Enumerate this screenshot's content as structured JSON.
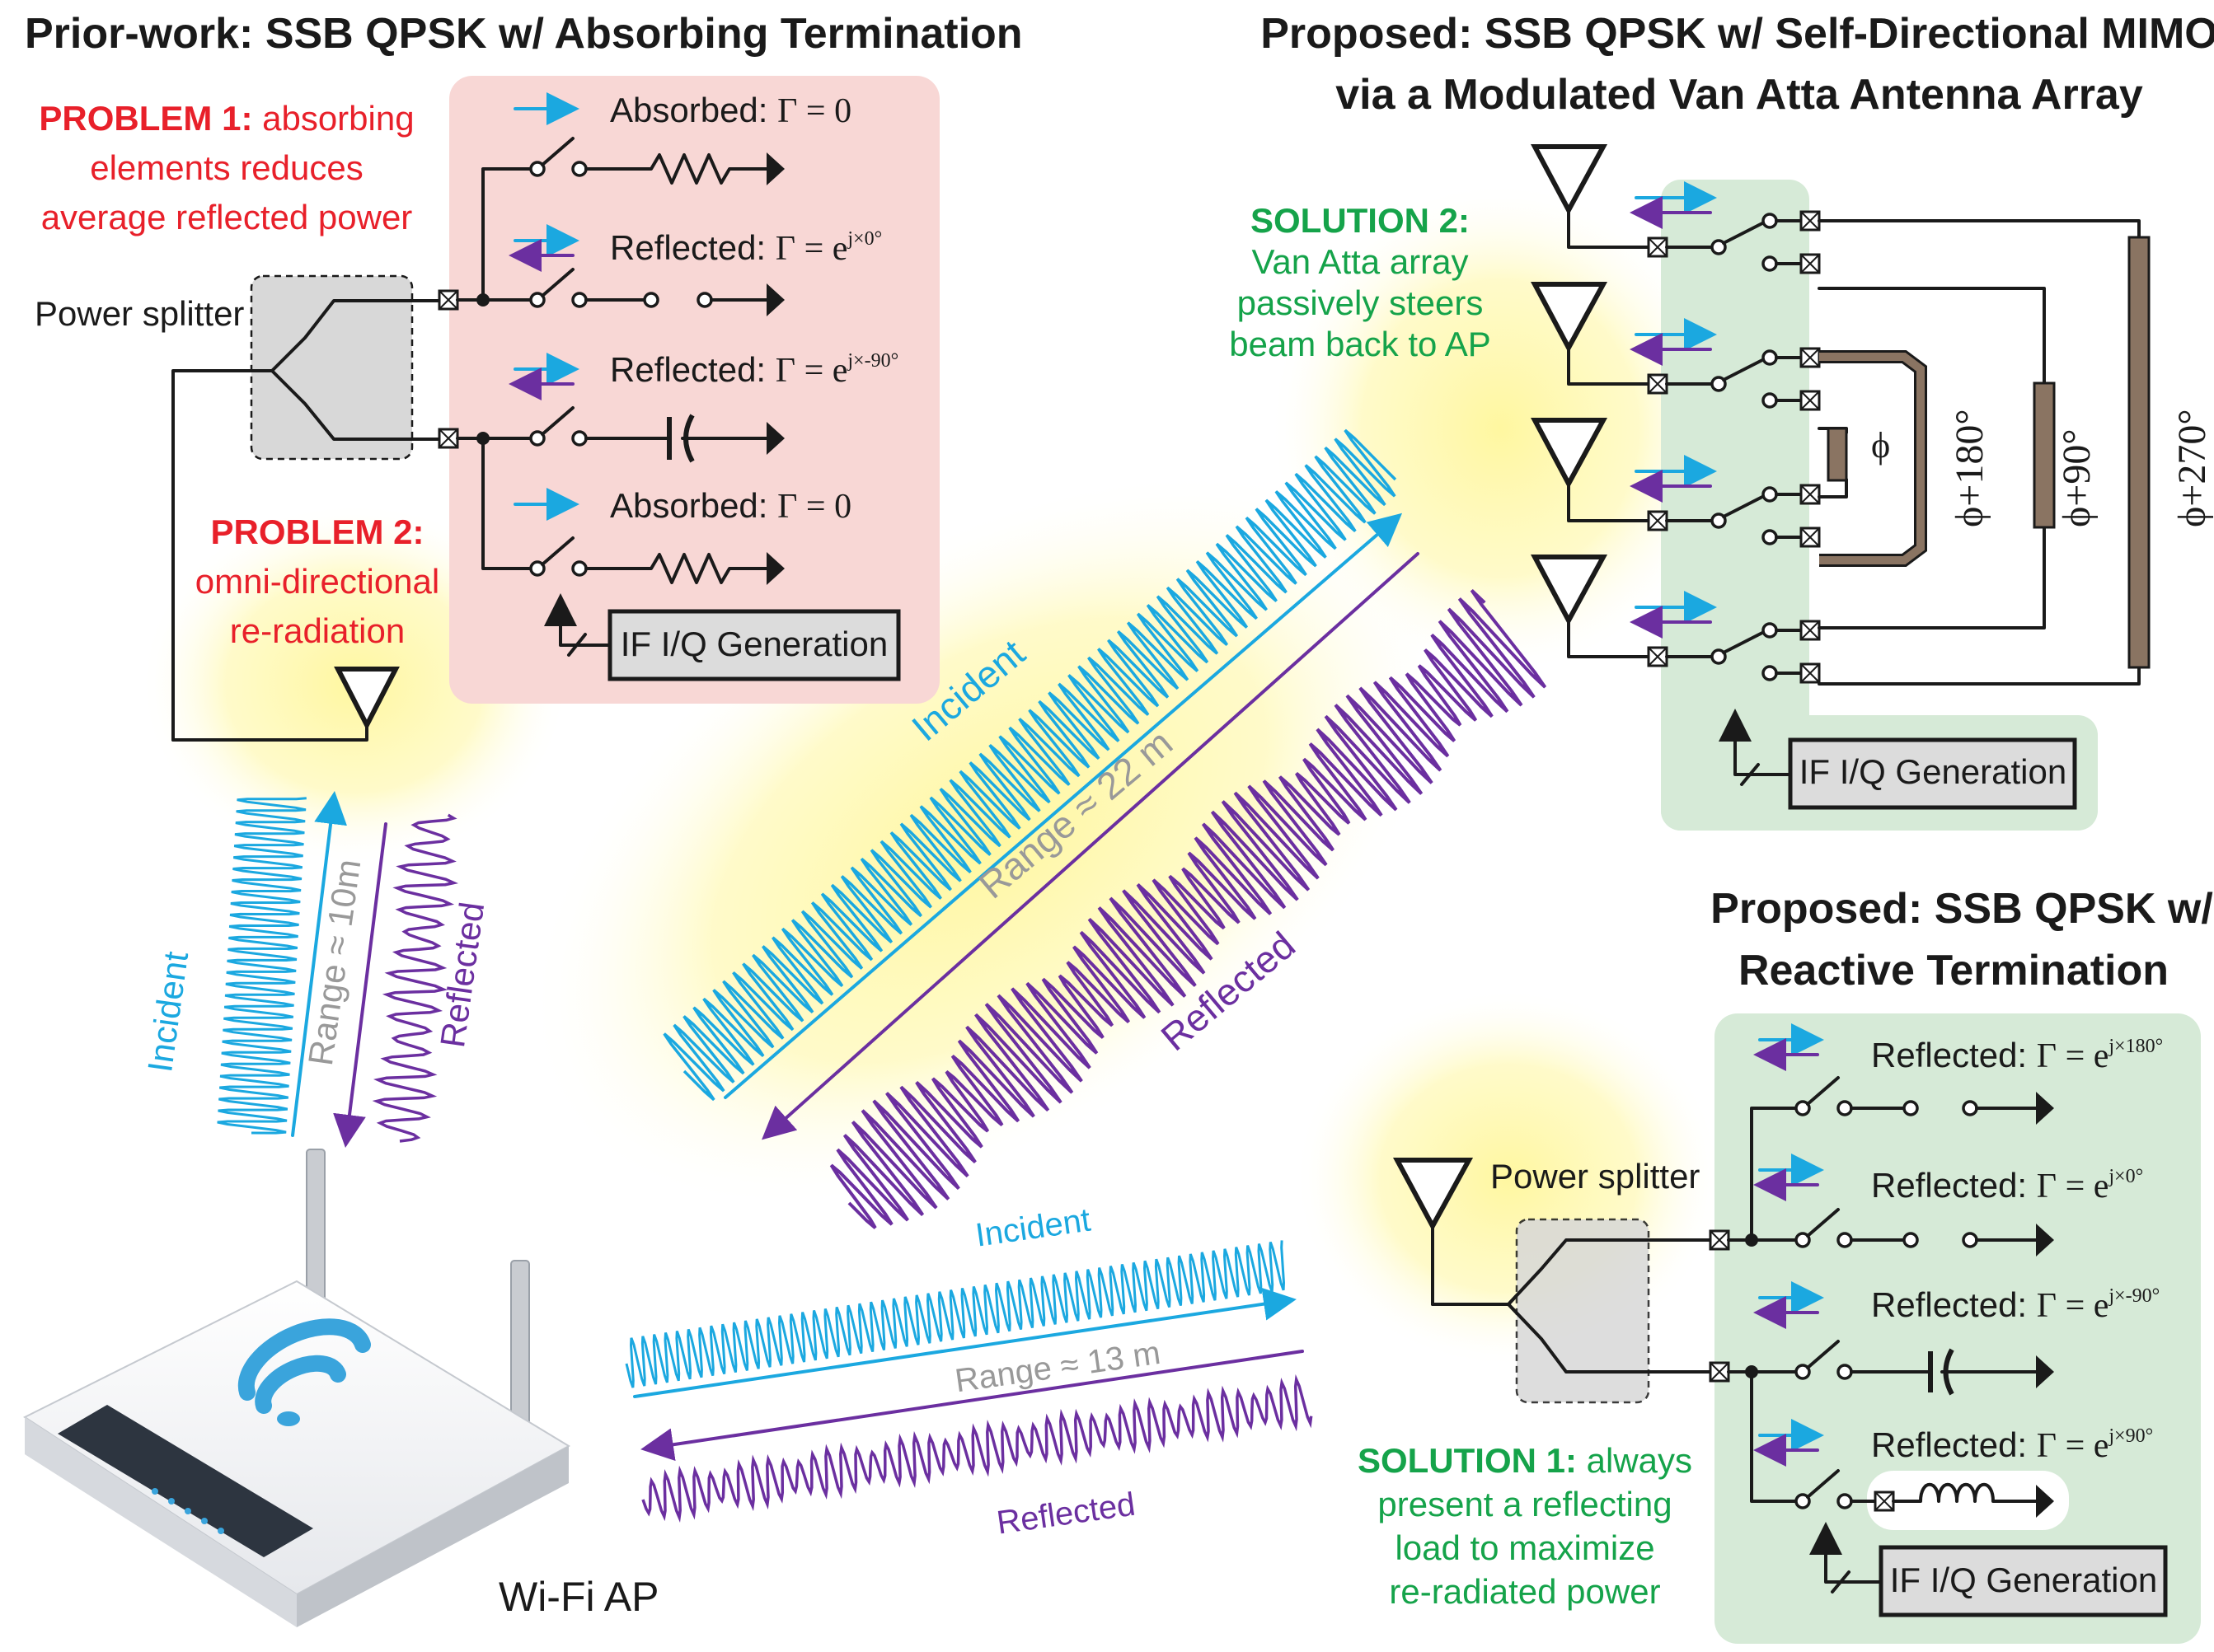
{
  "titles": {
    "prior": "Prior-work: SSB QPSK w/ Absorbing Termination",
    "proposed_mimo_line1": "Proposed: SSB QPSK w/ Self-Directional MIMO",
    "proposed_mimo_line2": "via a Modulated Van Atta Antenna Array",
    "proposed_reactive_line1": "Proposed: SSB QPSK w/",
    "proposed_reactive_line2": "Reactive Termination"
  },
  "problems": {
    "p1_head": "PROBLEM 1:",
    "p1_l1": " absorbing",
    "p1_l2": "elements reduces",
    "p1_l3": "average reflected power",
    "p2_head": "PROBLEM 2:",
    "p2_l1": "omni-directional",
    "p2_l2": "re-radiation"
  },
  "solutions": {
    "s1_head": "SOLUTION 1:",
    "s1_l1": " always",
    "s1_l2": "present a reflecting",
    "s1_l3": "load to maximize",
    "s1_l4": "re-radiated power",
    "s2_head": "SOLUTION 2:",
    "s2_l1": "Van Atta array",
    "s2_l2": "passively steers",
    "s2_l3": "beam back to AP"
  },
  "prior_panel": {
    "splitter": "Power splitter",
    "branches": [
      {
        "label": "Absorbed: ",
        "gamma": "Γ = 0",
        "sup": ""
      },
      {
        "label": "Reflected: ",
        "gamma": "Γ = e",
        "sup": "j×0°"
      },
      {
        "label": "Reflected: ",
        "gamma": "Γ = e",
        "sup": "j×-90°"
      },
      {
        "label": "Absorbed: ",
        "gamma": "Γ = 0",
        "sup": ""
      }
    ],
    "ifgen": "IF I/Q Generation"
  },
  "reactive_panel": {
    "splitter": "Power splitter",
    "branches": [
      {
        "label": "Reflected: ",
        "gamma": "Γ = e",
        "sup": "j×180°"
      },
      {
        "label": "Reflected: ",
        "gamma": "Γ = e",
        "sup": "j×0°"
      },
      {
        "label": "Reflected: ",
        "gamma": "Γ = e",
        "sup": "j×-90°"
      },
      {
        "label": "Reflected: ",
        "gamma": "Γ = e",
        "sup": "j×90°"
      }
    ],
    "ifgen": "IF I/Q Generation"
  },
  "vanatta": {
    "phases": [
      "ϕ",
      "ϕ+180°",
      "ϕ+90°",
      "ϕ+270°"
    ],
    "ifgen": "IF I/Q Generation"
  },
  "links": {
    "left": {
      "incident": "Incident",
      "reflected": "Reflected",
      "range": "Range ≈ 10m"
    },
    "middle": {
      "incident": "Incident",
      "reflected": "Reflected",
      "range": "Range ≈ 22 m"
    },
    "bottom": {
      "incident": "Incident",
      "reflected": "Reflected",
      "range": "Range ≈ 13 m"
    }
  },
  "router_label": "Wi-Fi AP",
  "colors": {
    "red": "#e8202a",
    "green": "#15a34a",
    "blue": "#1ba8e0",
    "purple": "#6b2fa0",
    "panel_red": "#f8d7d5",
    "panel_green": "#d6ead7",
    "glow": "#fff06a",
    "phase_line": "#8a7462"
  }
}
